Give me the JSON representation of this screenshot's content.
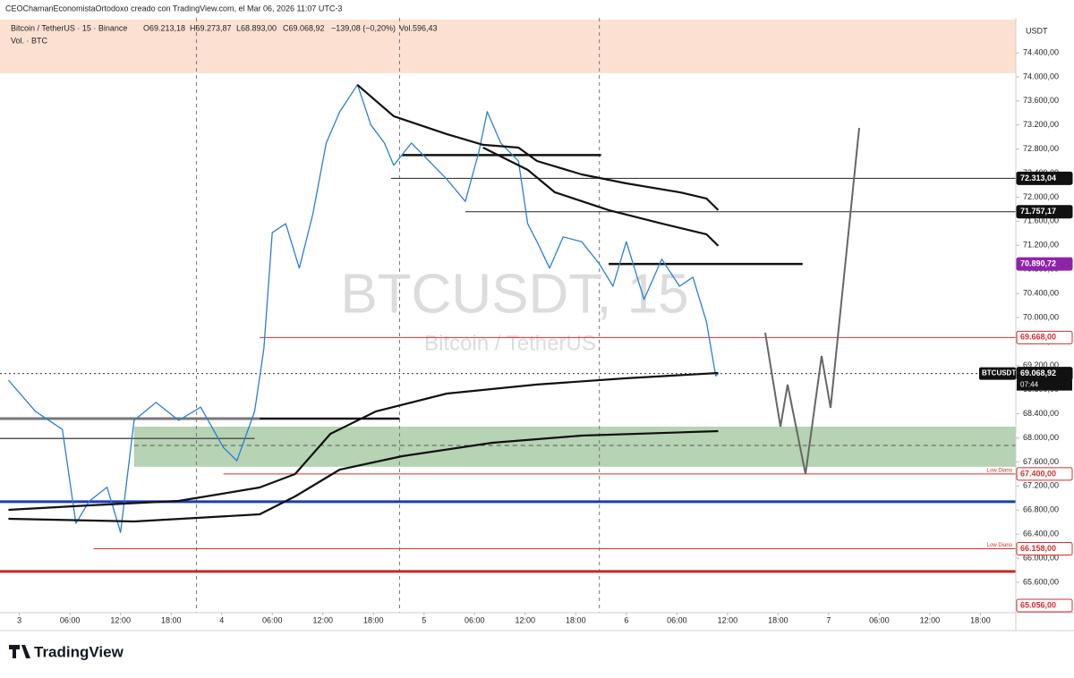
{
  "header": {
    "credit": "CEOChamanEconomistaOrtodoxo creado con TradingView.com, el Mar 06, 2026 11:07 UTC-3"
  },
  "legend": {
    "symbol": "Bitcoin / TetherUS · 15 · Binance",
    "open": "O69.213,18",
    "high": "H69.273,87",
    "low": "L68.893,00",
    "close": "C69.068,92",
    "change": "−139,08 (−0,20%)",
    "volume": "Vol.596,43",
    "volume_indicator": "Vol. · BTC"
  },
  "watermark": {
    "ticker": "BTCUSDT, 15",
    "name": "Bitcoin / TetherUS"
  },
  "footer": {
    "brand": "TradingView"
  },
  "chart_data": {
    "type": "line",
    "y_unit": "USDT",
    "xlim": [
      -2.3,
      118.2
    ],
    "ylim": [
      65050,
      74950
    ],
    "xticks": [
      {
        "value": 0,
        "label": "3"
      },
      {
        "value": 6,
        "label": "06:00"
      },
      {
        "value": 12,
        "label": "12:00"
      },
      {
        "value": 18,
        "label": "18:00"
      },
      {
        "value": 24,
        "label": "4"
      },
      {
        "value": 30,
        "label": "06:00"
      },
      {
        "value": 36,
        "label": "12:00"
      },
      {
        "value": 42,
        "label": "18:00"
      },
      {
        "value": 48,
        "label": "5"
      },
      {
        "value": 54,
        "label": "06:00"
      },
      {
        "value": 60,
        "label": "12:00"
      },
      {
        "value": 66,
        "label": "18:00"
      },
      {
        "value": 72,
        "label": "6"
      },
      {
        "value": 78,
        "label": "06:00"
      },
      {
        "value": 84,
        "label": "12:00"
      },
      {
        "value": 90,
        "label": "18:00"
      },
      {
        "value": 96,
        "label": "7"
      },
      {
        "value": 102,
        "label": "06:00"
      },
      {
        "value": 108,
        "label": "12:00"
      },
      {
        "value": 114,
        "label": "18:00"
      }
    ],
    "yticks": [
      {
        "value": 65600,
        "label": "65.600,00"
      },
      {
        "value": 66000,
        "label": "66.000,00"
      },
      {
        "value": 66400,
        "label": "66.400,00"
      },
      {
        "value": 66800,
        "label": "66.800,00"
      },
      {
        "value": 67200,
        "label": "67.200,00"
      },
      {
        "value": 67600,
        "label": "67.600,00"
      },
      {
        "value": 68000,
        "label": "68.000,00"
      },
      {
        "value": 68400,
        "label": "68.400,00"
      },
      {
        "value": 68800,
        "label": "68.800,00"
      },
      {
        "value": 69200,
        "label": "69.200,00"
      },
      {
        "value": 69600,
        "label": "69.600,00"
      },
      {
        "value": 70000,
        "label": "70.000,00"
      },
      {
        "value": 70400,
        "label": "70.400,00"
      },
      {
        "value": 70800,
        "label": "70.800,00"
      },
      {
        "value": 71200,
        "label": "71.200,00"
      },
      {
        "value": 71600,
        "label": "71.600,00"
      },
      {
        "value": 72000,
        "label": "72.000,00"
      },
      {
        "value": 72400,
        "label": "72.400,00"
      },
      {
        "value": 72800,
        "label": "72.800,00"
      },
      {
        "value": 73200,
        "label": "73.200,00"
      },
      {
        "value": 73600,
        "label": "73.600,00"
      },
      {
        "value": 74000,
        "label": "74.000,00"
      },
      {
        "value": 74400,
        "label": "74.400,00"
      }
    ],
    "vlines": [
      21,
      45.1,
      68.8
    ],
    "zones": [
      {
        "low": 74060,
        "high": 74950,
        "from": -2.3,
        "color": "#fcdccb"
      },
      {
        "low": 67520,
        "high": 68187,
        "from": 13.6,
        "color": "#a9cba6"
      }
    ],
    "series": [
      {
        "color": "#2a7fd4",
        "width": 1.3,
        "x": [
          -1.3,
          1.9,
          5.1,
          6.7,
          8.3,
          10.4,
          12.0,
          13.6,
          16.2,
          18.9,
          21.5,
          24.2,
          25.8,
          27.9,
          29.0,
          30.0,
          31.6,
          33.2,
          34.8,
          36.4,
          38.0,
          40.1,
          41.7,
          43.3,
          44.4,
          46.5,
          48.6,
          50.7,
          52.9,
          54.5,
          55.5,
          57.1,
          59.2,
          60.3,
          61.4,
          62.9,
          64.5,
          66.7,
          68.8,
          70.4,
          72.0,
          74.1,
          76.2,
          78.3,
          79.9,
          81.5,
          82.6,
          82.9
        ],
        "values": [
          68960,
          68440,
          68140,
          66580,
          66950,
          67180,
          66430,
          68290,
          68590,
          68290,
          68510,
          67840,
          67620,
          68440,
          69480,
          71410,
          71560,
          70820,
          71710,
          72900,
          73420,
          73870,
          73200,
          72900,
          72530,
          72900,
          72600,
          72300,
          71930,
          72750,
          73420,
          72900,
          72600,
          71560,
          71260,
          70820,
          71340,
          71260,
          70890,
          70520,
          71260,
          70300,
          70970,
          70520,
          70670,
          69930,
          69030,
          69068.92
        ]
      },
      {
        "color": "#111111",
        "width": 2.2,
        "x": [
          40.1,
          44.4,
          50.7,
          55.0,
          59.2,
          61.4,
          66.7,
          72.0,
          78.3,
          81.5,
          82.9
        ],
        "values": [
          73866,
          73346,
          73049,
          72870,
          72825,
          72602,
          72379,
          72230,
          72082,
          71978,
          71785
        ]
      },
      {
        "color": "#111111",
        "width": 2.2,
        "x": [
          55.0,
          60.3,
          63.5,
          69.9,
          76.2,
          81.5,
          82.9
        ],
        "values": [
          72825,
          72454,
          72082,
          71785,
          71562,
          71384,
          71191
        ]
      },
      {
        "color": "#111111",
        "width": 2.2,
        "x": [
          -1.3,
          8.3,
          18.9,
          28.5,
          32.7,
          36.9,
          42.3,
          50.7,
          61.4,
          72.0,
          82.9
        ],
        "values": [
          66804,
          66878,
          66953,
          67176,
          67399,
          68068,
          68440,
          68737,
          68886,
          68990,
          69079
        ]
      },
      {
        "color": "#111111",
        "width": 2.2,
        "x": [
          -1.3,
          13.6,
          28.5,
          32.7,
          38.0,
          45.4,
          56.1,
          66.7,
          82.9
        ],
        "values": [
          66655,
          66611,
          66730,
          67027,
          67473,
          67696,
          67919,
          68038,
          68112
        ]
      }
    ],
    "levels": [
      {
        "value": 72313.04,
        "label": "72.313,04",
        "from": 44.1,
        "color": "#222222",
        "width": 1,
        "tag": "#111111",
        "tag_text": "#ffffff"
      },
      {
        "value": 71757.17,
        "label": "71.757,17",
        "from": 52.9,
        "color": "#222222",
        "width": 1,
        "tag": "#111111",
        "tag_text": "#ffffff"
      },
      {
        "value": 70890.72,
        "label": "70.890,72",
        "from": 69.9,
        "to": 92.9,
        "color": "#111111",
        "width": 2.5,
        "tag": "#8e24aa",
        "tag_text": "#ffffff"
      },
      {
        "value": 69668.0,
        "label": "69.668,00",
        "from": 28.5,
        "color": "#d32f2f",
        "width": 1,
        "tag": "#ffffff",
        "tag_text": "#d32f2f"
      },
      {
        "value": 69068.92,
        "label": "69.068,92",
        "from": -2.3,
        "color": "#333333",
        "width": 1,
        "dash": "2 3",
        "tag": "#111111",
        "tag_text": "#ffffff",
        "symbol": "BTCUSDT",
        "countdown": "07:44"
      },
      {
        "value": 67874,
        "from": 13.6,
        "color": "#555555",
        "width": 1,
        "dash": "5 4"
      },
      {
        "value": 67400.0,
        "label": "67.400,00",
        "note": "Low Diario",
        "from": 24.2,
        "color": "#d32f2f",
        "width": 1,
        "tag": "#ffffff",
        "tag_text": "#d32f2f"
      },
      {
        "value": 66158.0,
        "label": "66.158,00",
        "note": "Low Diario",
        "from": 8.8,
        "color": "#d32f2f",
        "width": 1,
        "tag": "#ffffff",
        "tag_text": "#d32f2f"
      },
      {
        "value": 65056.0,
        "label": "65.056,00",
        "tag": "#ffffff",
        "tag_text": "#d32f2f"
      },
      {
        "value": 66940,
        "from": -2.3,
        "color": "#1a3fb0",
        "width": 3
      },
      {
        "value": 65780,
        "from": -2.3,
        "color": "#c62828",
        "width": 3
      },
      {
        "value": 72700,
        "from": 45.4,
        "to": 69.0,
        "color": "#111111",
        "width": 2.5
      },
      {
        "value": 68320,
        "from": -2.3,
        "to": 28.5,
        "color": "#777777",
        "width": 3
      },
      {
        "value": 68320,
        "from": 28.5,
        "to": 45.1,
        "color": "#111111",
        "width": 2.5
      },
      {
        "value": 67990,
        "from": -2.3,
        "to": 27.9,
        "color": "#555555",
        "width": 1.5
      }
    ]
  }
}
